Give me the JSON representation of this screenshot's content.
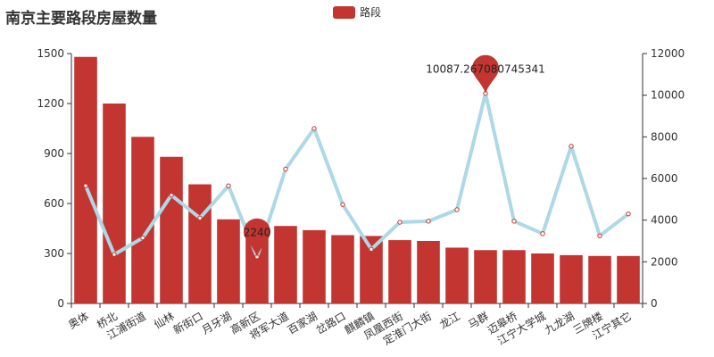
{
  "chart_title": "南京主要路段房屋数量",
  "legend": {
    "label": "路段",
    "color": "#c23531"
  },
  "colors": {
    "bar": "#c23531",
    "line": "#add8e6",
    "axis": "#333333"
  },
  "chart_data": {
    "type": "bar",
    "title": "南京主要路段房屋数量",
    "categories": [
      "奥体",
      "桥北",
      "江浦街道",
      "仙林",
      "新街口",
      "月牙湖",
      "高新区",
      "将军大道",
      "百家湖",
      "岔路口",
      "麒麟镇",
      "凤凰西街",
      "定淮门大街",
      "龙江",
      "马群",
      "迈皋桥",
      "江宁大学城",
      "九龙湖",
      "三牌楼",
      "江宁其它"
    ],
    "series": [
      {
        "name": "路段",
        "type": "bar",
        "axis": "left",
        "values": [
          1480,
          1200,
          1000,
          880,
          715,
          505,
          480,
          465,
          440,
          410,
          405,
          380,
          375,
          335,
          320,
          320,
          300,
          290,
          285,
          285
        ]
      },
      {
        "type": "line",
        "axis": "right",
        "values": [
          5650,
          2350,
          3150,
          5200,
          4100,
          5650,
          2240,
          6450,
          8400,
          4750,
          2600,
          3900,
          3950,
          4500,
          10087.267080745341,
          3950,
          3350,
          7550,
          3250,
          4300
        ]
      }
    ],
    "left_axis": {
      "min": 0,
      "max": 1500,
      "ticks": [
        0,
        300,
        600,
        900,
        1200,
        1500
      ]
    },
    "right_axis": {
      "min": 0,
      "max": 12000,
      "ticks": [
        0,
        2000,
        4000,
        6000,
        8000,
        10000,
        12000
      ]
    },
    "mark_points": [
      {
        "type": "max",
        "category": "马群",
        "value": "10087.267080745341"
      },
      {
        "type": "min",
        "category": "高新区",
        "value": "2240"
      }
    ],
    "legend_position": "top"
  }
}
